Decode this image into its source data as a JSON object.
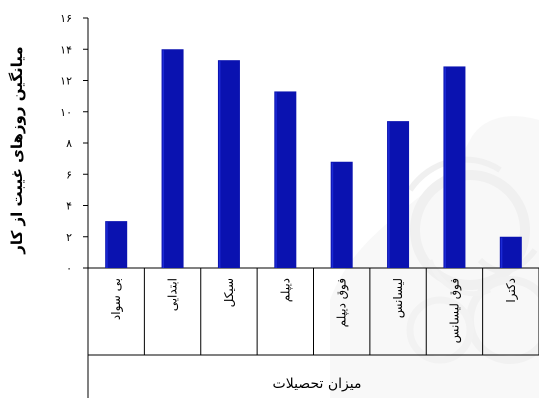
{
  "chart_data": {
    "type": "bar",
    "title": "",
    "xlabel": "میزان تحصیلات",
    "ylabel": "میانگین روزهای غیبت از کار",
    "ylim": [
      0,
      16
    ],
    "yticks": [
      "۰",
      "۲",
      "۴",
      "۶",
      "۸",
      "۱۰",
      "۱۲",
      "۱۴",
      "۱۶"
    ],
    "ytick_values": [
      0,
      2,
      4,
      6,
      8,
      10,
      12,
      14,
      16
    ],
    "categories": [
      "بی سواد",
      "ابتدایی",
      "سیکل",
      "دیپلم",
      "فوق دیپلم",
      "لیسانس",
      "فوق لیسانس",
      "دکترا"
    ],
    "values": [
      3.0,
      14.0,
      13.3,
      11.3,
      6.8,
      9.4,
      12.9,
      2.0
    ],
    "colors": {
      "bar": "#0a12b0",
      "bar_edge": "#1c2ad4",
      "axis": "#000000",
      "watermark": "#e2e2e2"
    },
    "grid": false,
    "legend": "none"
  }
}
